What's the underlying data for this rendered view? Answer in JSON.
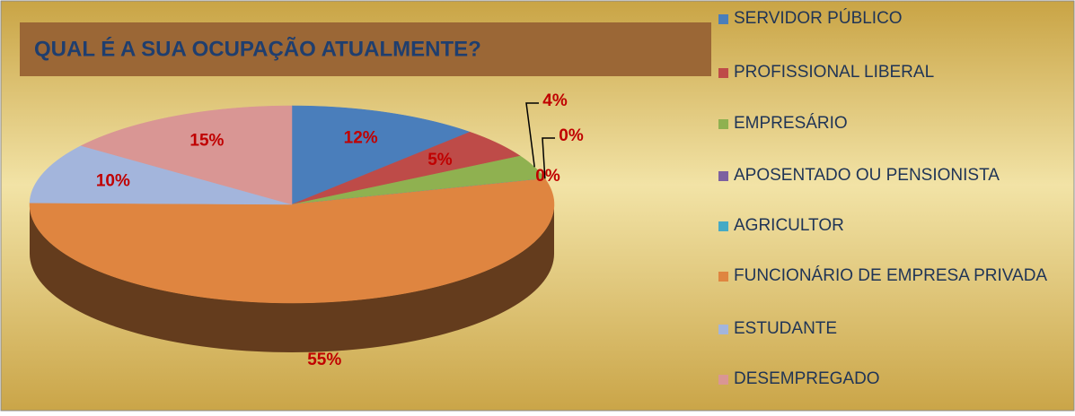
{
  "chart_data": {
    "type": "pie",
    "title": "QUAL É A SUA OCUPAÇÃO ATUALMENTE?",
    "categories": [
      "SERVIDOR PÚBLICO",
      "PROFISSIONAL LIBERAL",
      "EMPRESÁRIO",
      "APOSENTADO OU PENSIONISTA",
      "AGRICULTOR",
      "FUNCIONÁRIO DE EMPRESA PRIVADA",
      "ESTUDANTE",
      "DESEMPREGADO"
    ],
    "values": [
      12,
      5,
      4,
      0,
      0,
      55,
      10,
      15
    ],
    "value_labels": [
      "12%",
      "5%",
      "4%",
      "0%",
      "0%",
      "55%",
      "10%",
      "15%"
    ],
    "colors": [
      "#4a7ebb",
      "#be4b48",
      "#8fb150",
      "#7d60a0",
      "#46aac5",
      "#df8540",
      "#a3b5dc",
      "#d99694"
    ],
    "legend": "right"
  }
}
